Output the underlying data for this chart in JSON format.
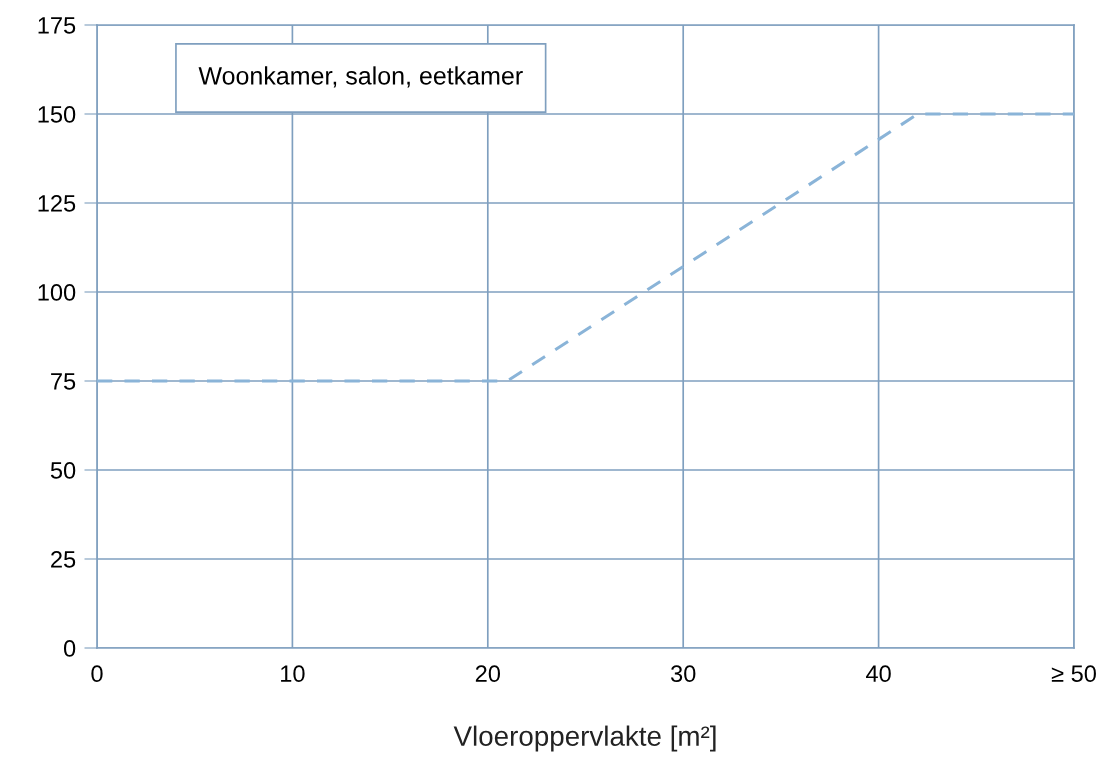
{
  "chart_data": {
    "type": "line",
    "xlabel": "Vloeroppervlakte [m²]",
    "x": [
      0,
      21,
      42,
      50
    ],
    "series": [
      {
        "color": "#8ab4d8",
        "values": [
          75,
          75,
          150,
          150
        ]
      }
    ],
    "line_style": "dashed",
    "marker": "none",
    "xlim": [
      0,
      50
    ],
    "ylim": [
      0,
      175
    ],
    "xticks": [
      0,
      10,
      20,
      30,
      40,
      {
        "value": 50,
        "label": "≥ 50"
      }
    ],
    "yticks": [
      0,
      25,
      50,
      75,
      100,
      125,
      150,
      175
    ],
    "grid": true,
    "legend": false,
    "annotations": [
      "Woonkamer, salon, eetkamer"
    ]
  }
}
